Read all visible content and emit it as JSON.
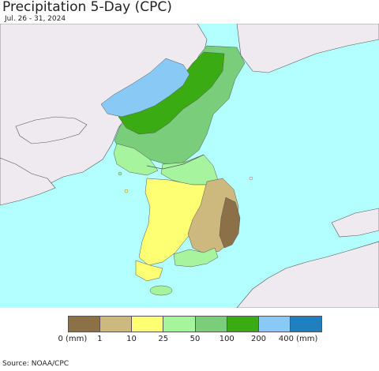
{
  "header": {
    "title": "Precipitation 5-Day (CPC)",
    "date_range": "Jul. 26 - 31, 2024"
  },
  "legend": {
    "colors": [
      "#8b7048",
      "#cdb97e",
      "#ffff73",
      "#a6f59e",
      "#7acd7a",
      "#3aab13",
      "#88c9f5",
      "#1f7fbf"
    ],
    "labels": [
      "0 (mm)",
      "1",
      "10",
      "25",
      "50",
      "100",
      "200",
      "400 (mm)"
    ]
  },
  "footer": {
    "source": "Source: NOAA/CPC"
  },
  "map": {
    "ocean_color": "#b3ffff",
    "land_color": "#efeaef",
    "border_color": "#666666"
  }
}
